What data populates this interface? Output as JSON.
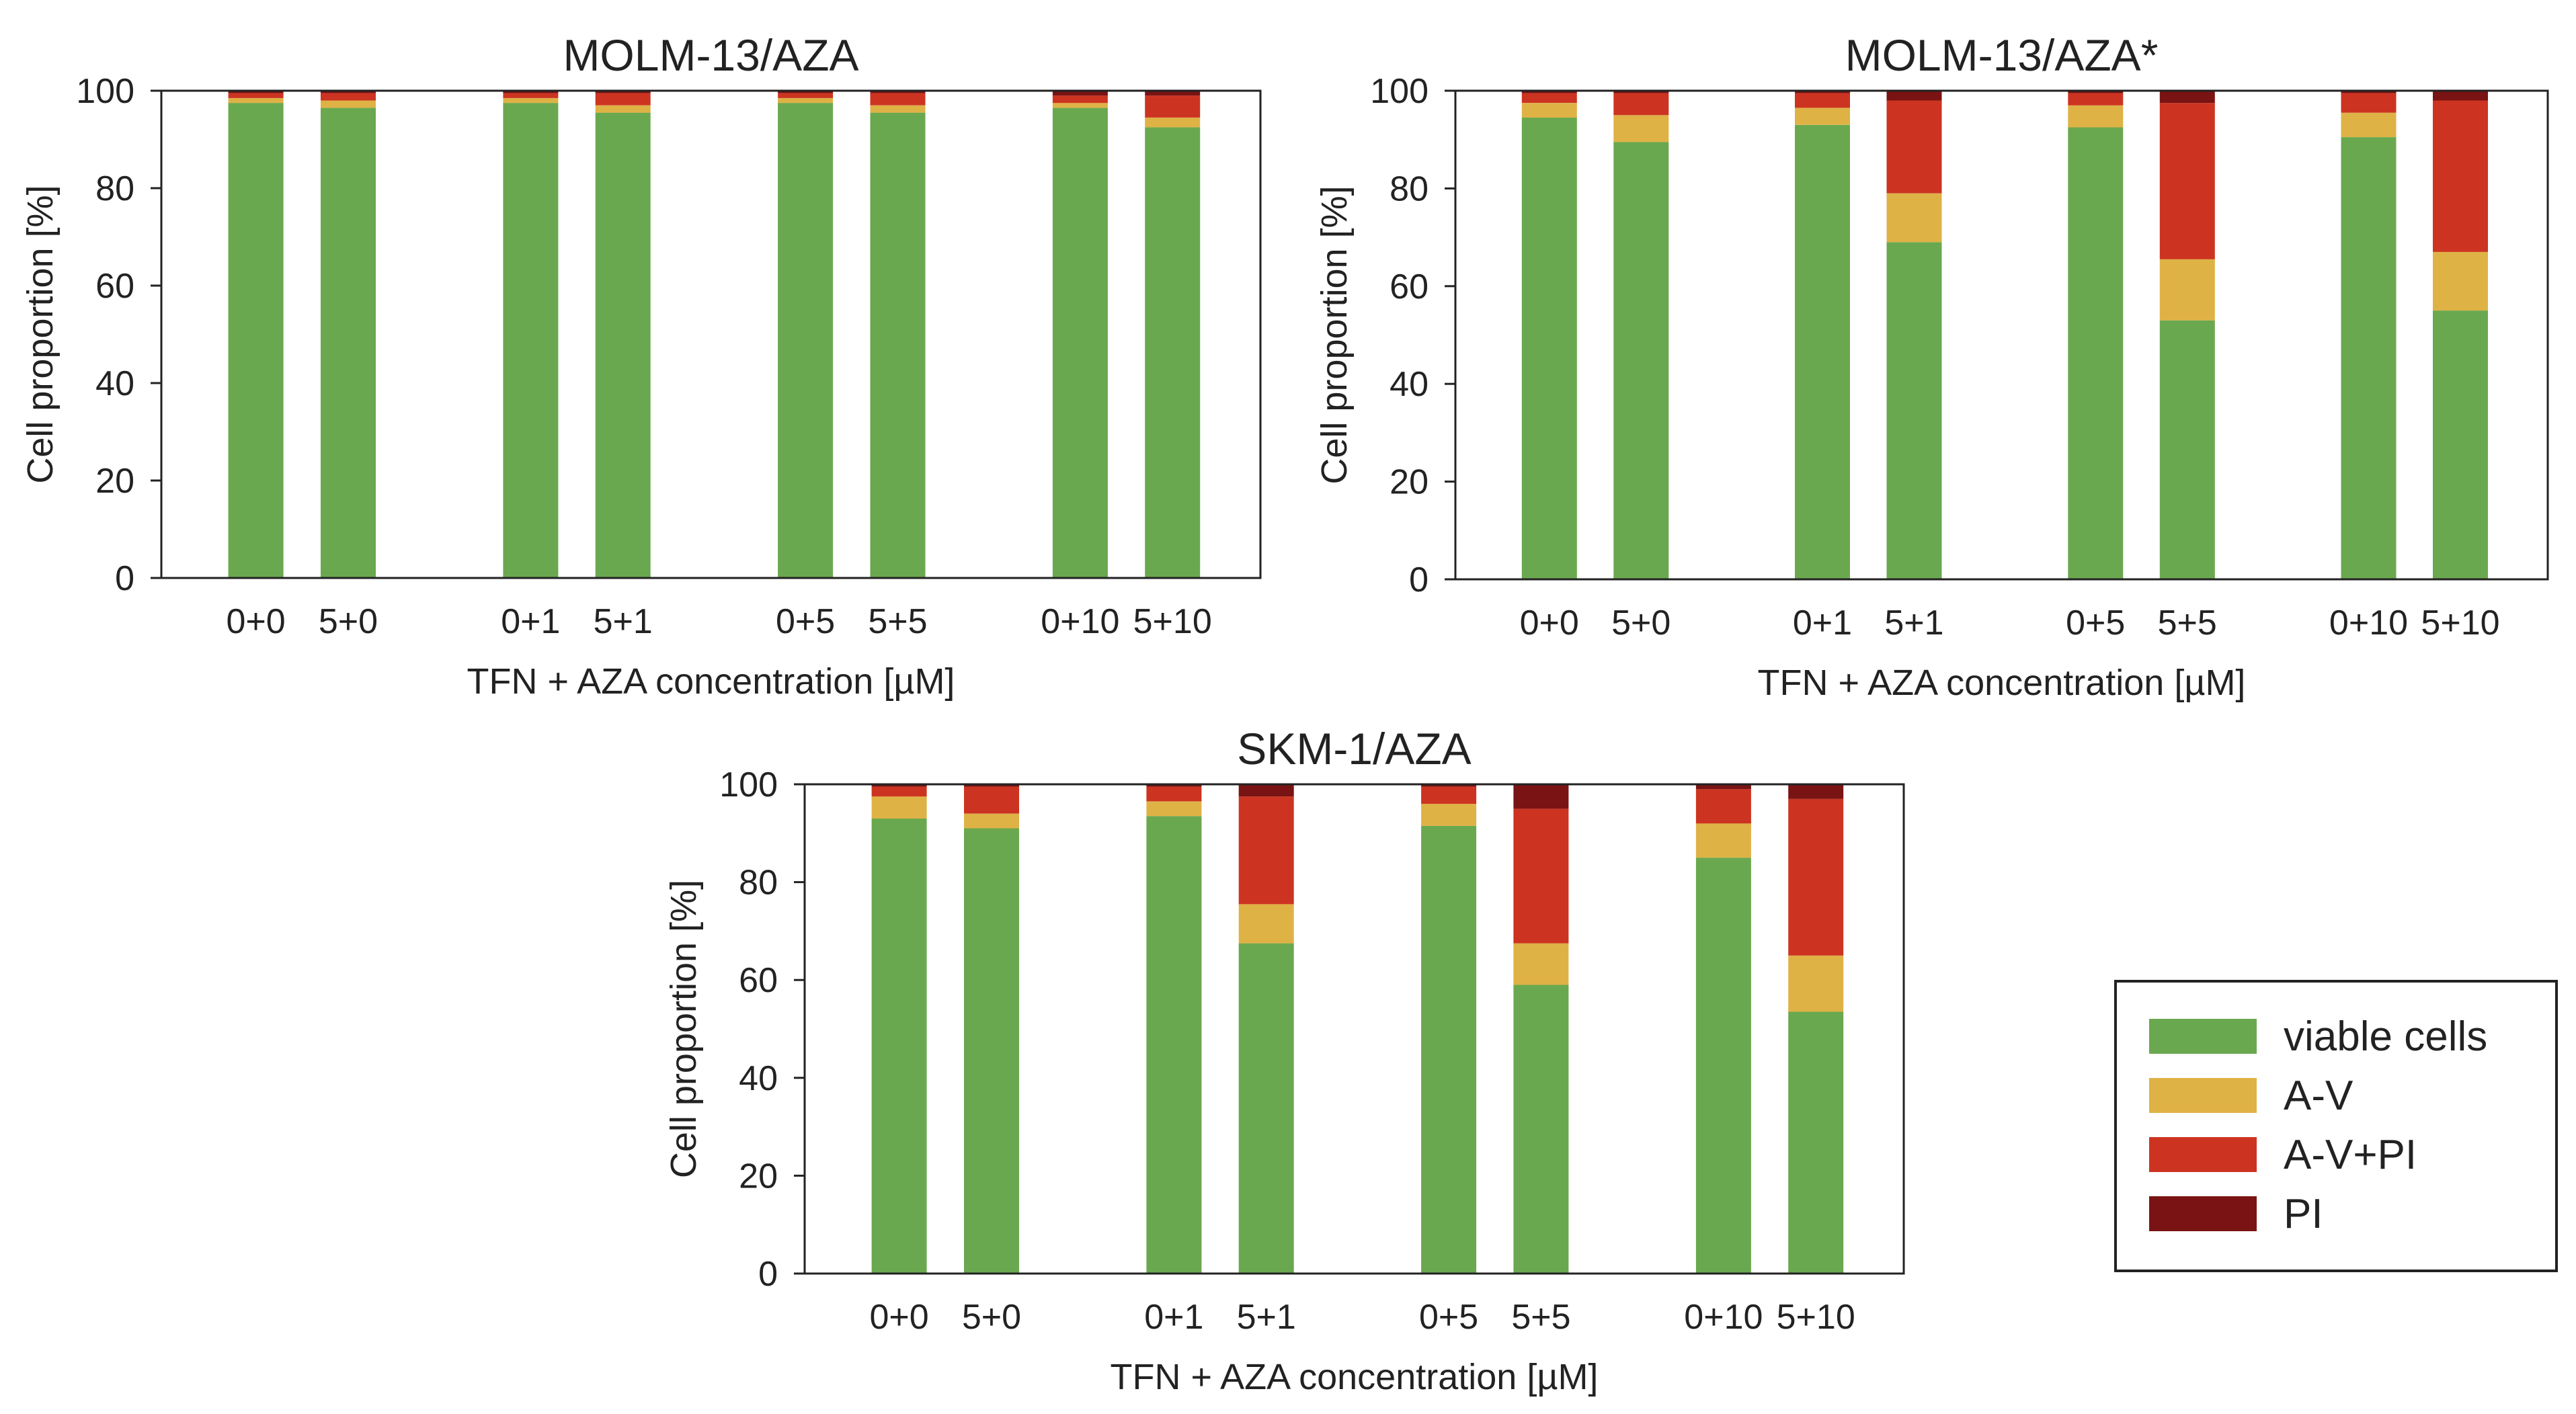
{
  "colors": {
    "viable cells": "#6aa84f",
    "A-V": "#dfb245",
    "A-V+PI": "#cc3421",
    "PI": "#7a1313"
  },
  "legend": {
    "items": [
      {
        "label": "viable cells",
        "color": "#6aa84f"
      },
      {
        "label": "A-V",
        "color": "#dfb245"
      },
      {
        "label": "A-V+PI",
        "color": "#cc3421"
      },
      {
        "label": "PI",
        "color": "#7a1313"
      }
    ]
  },
  "chart_data": [
    {
      "type": "bar",
      "stacked": true,
      "title": "MOLM-13/AZA",
      "xlabel": "TFN + AZA concentration [µM]",
      "ylabel": "Cell proportion [%]",
      "ylim": [
        0,
        100
      ],
      "yticks": [
        0,
        20,
        40,
        60,
        80,
        100
      ],
      "grid": false,
      "categories": [
        "0+0",
        "5+0",
        "0+1",
        "5+1",
        "0+5",
        "5+5",
        "0+10",
        "5+10"
      ],
      "series": [
        {
          "name": "viable cells",
          "values": [
            97.5,
            96.5,
            97.5,
            95.5,
            97.5,
            95.5,
            96.5,
            92.5
          ]
        },
        {
          "name": "A-V",
          "values": [
            1,
            1.5,
            1,
            1.5,
            1,
            1.5,
            1,
            2
          ]
        },
        {
          "name": "A-V+PI",
          "values": [
            1,
            1.5,
            1,
            2.5,
            1,
            2.5,
            1.5,
            4.5
          ]
        },
        {
          "name": "PI",
          "values": [
            0.5,
            0.5,
            0.5,
            0.5,
            0.5,
            0.5,
            1,
            1
          ]
        }
      ]
    },
    {
      "type": "bar",
      "stacked": true,
      "title": "MOLM-13/AZA*",
      "xlabel": "TFN + AZA concentration [µM]",
      "ylabel": "Cell proportion [%]",
      "ylim": [
        0,
        100
      ],
      "yticks": [
        0,
        20,
        40,
        60,
        80,
        100
      ],
      "grid": false,
      "categories": [
        "0+0",
        "5+0",
        "0+1",
        "5+1",
        "0+5",
        "5+5",
        "0+10",
        "5+10"
      ],
      "series": [
        {
          "name": "viable cells",
          "values": [
            94.5,
            89.5,
            93,
            69,
            92.5,
            53,
            90.5,
            55
          ]
        },
        {
          "name": "A-V",
          "values": [
            3,
            5.5,
            3.5,
            10,
            4.5,
            12.5,
            5,
            12
          ]
        },
        {
          "name": "A-V+PI",
          "values": [
            2,
            4.5,
            3,
            19,
            2.5,
            32,
            4,
            31
          ]
        },
        {
          "name": "PI",
          "values": [
            0.5,
            0.5,
            0.5,
            2,
            0.5,
            2.5,
            0.5,
            2
          ]
        }
      ]
    },
    {
      "type": "bar",
      "stacked": true,
      "title": "SKM-1/AZA",
      "xlabel": "TFN + AZA concentration [µM]",
      "ylabel": "Cell proportion [%]",
      "ylim": [
        0,
        100
      ],
      "yticks": [
        0,
        20,
        40,
        60,
        80,
        100
      ],
      "grid": false,
      "categories": [
        "0+0",
        "5+0",
        "0+1",
        "5+1",
        "0+5",
        "5+5",
        "0+10",
        "5+10"
      ],
      "series": [
        {
          "name": "viable cells",
          "values": [
            93,
            91,
            93.5,
            67.5,
            91.5,
            59,
            85,
            53.5
          ]
        },
        {
          "name": "A-V",
          "values": [
            4.5,
            3,
            3,
            8,
            4.5,
            8.5,
            7,
            11.5
          ]
        },
        {
          "name": "A-V+PI",
          "values": [
            2,
            5.5,
            3,
            22,
            3.5,
            27.5,
            7,
            32
          ]
        },
        {
          "name": "PI",
          "values": [
            0.5,
            0.5,
            0.5,
            2.5,
            0.5,
            5,
            1,
            3
          ]
        }
      ]
    }
  ]
}
